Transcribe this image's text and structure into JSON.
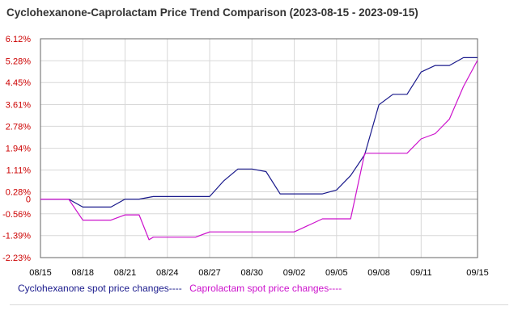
{
  "chart_data": {
    "type": "line",
    "title": "Cyclohexanone-Caprolactam Price Trend Comparison (2023-08-15 - 2023-09-15)",
    "y_ticks": [
      "6.12%",
      "5.28%",
      "4.45%",
      "3.61%",
      "2.78%",
      "1.94%",
      "1.11%",
      "0.28%",
      "0",
      "-0.56%",
      "-1.39%",
      "-2.23%"
    ],
    "ylim": [
      -2.23,
      6.12
    ],
    "x_ticks": [
      "08/15",
      "08/18",
      "08/21",
      "08/24",
      "08/27",
      "08/30",
      "09/02",
      "09/05",
      "09/08",
      "09/11",
      "09/15"
    ],
    "x_days": [
      0,
      3,
      6,
      9,
      12,
      15,
      18,
      21,
      24,
      27,
      31
    ],
    "xlim": [
      0,
      31
    ],
    "grid": true,
    "legend_position": "bottom",
    "series": [
      {
        "name": "Cyclohexanone spot price changes----",
        "color": "#1a1a8c",
        "points": [
          [
            0,
            0
          ],
          [
            2,
            0
          ],
          [
            3,
            -0.3
          ],
          [
            4,
            -0.3
          ],
          [
            5,
            -0.3
          ],
          [
            6,
            0
          ],
          [
            7,
            0
          ],
          [
            8,
            0.1
          ],
          [
            9,
            0.1
          ],
          [
            10,
            0.1
          ],
          [
            11,
            0.1
          ],
          [
            12,
            0.1
          ],
          [
            13,
            0.7
          ],
          [
            14,
            1.15
          ],
          [
            15,
            1.15
          ],
          [
            16,
            1.05
          ],
          [
            17,
            0.2
          ],
          [
            18,
            0.2
          ],
          [
            19,
            0.2
          ],
          [
            20,
            0.2
          ],
          [
            21,
            0.35
          ],
          [
            22,
            0.9
          ],
          [
            23,
            1.7
          ],
          [
            24,
            3.6
          ],
          [
            25,
            4.0
          ],
          [
            26,
            4.0
          ],
          [
            27,
            4.85
          ],
          [
            28,
            5.1
          ],
          [
            29,
            5.1
          ],
          [
            30,
            5.4
          ],
          [
            31,
            5.4
          ]
        ]
      },
      {
        "name": "Caprolactam spot price changes----",
        "color": "#cc11cc",
        "points": [
          [
            0,
            0
          ],
          [
            2,
            0
          ],
          [
            3,
            -0.8
          ],
          [
            4,
            -0.8
          ],
          [
            5,
            -0.8
          ],
          [
            6,
            -0.6
          ],
          [
            7,
            -0.6
          ],
          [
            7.7,
            -1.55
          ],
          [
            8,
            -1.45
          ],
          [
            9,
            -1.45
          ],
          [
            10,
            -1.45
          ],
          [
            11,
            -1.45
          ],
          [
            12,
            -1.25
          ],
          [
            13,
            -1.25
          ],
          [
            14,
            -1.25
          ],
          [
            15,
            -1.25
          ],
          [
            16,
            -1.25
          ],
          [
            17,
            -1.25
          ],
          [
            18,
            -1.25
          ],
          [
            19,
            -1.0
          ],
          [
            20,
            -0.75
          ],
          [
            21,
            -0.75
          ],
          [
            22,
            -0.75
          ],
          [
            23,
            1.75
          ],
          [
            24,
            1.75
          ],
          [
            25,
            1.75
          ],
          [
            26,
            1.75
          ],
          [
            27,
            2.3
          ],
          [
            28,
            2.5
          ],
          [
            29,
            3.05
          ],
          [
            30,
            4.3
          ],
          [
            31,
            5.3
          ]
        ]
      }
    ]
  },
  "style": {
    "y_tick_color": "#cc0000",
    "x_tick_color": "#000000",
    "grid_color": "#d8d8d8",
    "zero_line_color": "#999999",
    "frame_color": "#666666"
  }
}
